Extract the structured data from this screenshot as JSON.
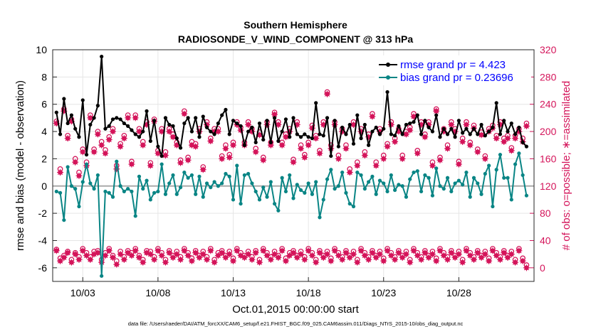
{
  "chart_data": {
    "type": "line",
    "title": "Southern Hemisphere",
    "subtitle": "RADIOSONDE_V_WIND_COMPONENT @ 313 hPa",
    "xlabel": "Oct.01,2015 00:00:00 start",
    "ylabel": "rmse and bias (model - observation)",
    "y2label": "# of obs: o=possible; ∗=assimilated",
    "xlim": [
      1,
      33
    ],
    "ylim": [
      -7,
      10
    ],
    "y2lim": [
      -20,
      320
    ],
    "x_ticks": [
      3,
      8,
      13,
      18,
      23,
      28
    ],
    "x_tick_labels": [
      "10/03",
      "10/08",
      "10/13",
      "10/18",
      "10/23",
      "10/28"
    ],
    "y_ticks": [
      "-6",
      "-4",
      "-2",
      "0",
      "2",
      "4",
      "6",
      "8",
      "10"
    ],
    "y2_ticks": [
      "0",
      "40",
      "80",
      "120",
      "160",
      "200",
      "240",
      "280",
      "320"
    ],
    "grid": true,
    "legend_position": "top-right",
    "zero_line": 0,
    "x": [
      1.25,
      1.5,
      1.75,
      2.0,
      2.25,
      2.5,
      2.75,
      3.0,
      3.25,
      3.5,
      3.75,
      4.0,
      4.25,
      4.5,
      4.75,
      5.0,
      5.25,
      5.5,
      5.75,
      6.0,
      6.25,
      6.5,
      6.75,
      7.0,
      7.25,
      7.5,
      7.75,
      8.0,
      8.25,
      8.5,
      8.75,
      9.0,
      9.25,
      9.5,
      9.75,
      10.0,
      10.25,
      10.5,
      10.75,
      11.0,
      11.25,
      11.5,
      11.75,
      12.0,
      12.25,
      12.5,
      12.75,
      13.0,
      13.25,
      13.5,
      13.75,
      14.0,
      14.25,
      14.5,
      14.75,
      15.0,
      15.25,
      15.5,
      15.75,
      16.0,
      16.25,
      16.5,
      16.75,
      17.0,
      17.25,
      17.5,
      17.75,
      18.0,
      18.25,
      18.5,
      18.75,
      19.0,
      19.25,
      19.5,
      19.75,
      20.0,
      20.25,
      20.5,
      20.75,
      21.0,
      21.25,
      21.5,
      21.75,
      22.0,
      22.25,
      22.5,
      22.75,
      23.0,
      23.25,
      23.5,
      23.75,
      24.0,
      24.25,
      24.5,
      24.75,
      25.0,
      25.25,
      25.5,
      25.75,
      26.0,
      26.25,
      26.5,
      26.75,
      27.0,
      27.25,
      27.5,
      27.75,
      28.0,
      28.25,
      28.5,
      28.75,
      29.0,
      29.25,
      29.5,
      29.75,
      30.0,
      30.25,
      30.5,
      30.75,
      31.0,
      31.25,
      31.5,
      31.75,
      32.0,
      32.25,
      32.5
    ],
    "series": [
      {
        "name": "rmse grand pr = 4.423",
        "color": "#000000",
        "values": [
          5.4,
          3.8,
          6.4,
          4.6,
          5.2,
          4.2,
          3.6,
          6.3,
          2.3,
          4.5,
          5.0,
          5.9,
          9.5,
          4.2,
          4.4,
          4.9,
          5.0,
          4.9,
          4.6,
          4.4,
          4.1,
          3.8,
          3.6,
          4.0,
          5.5,
          3.3,
          4.8,
          2.9,
          2.2,
          5.0,
          4.5,
          4.4,
          3.5,
          2.8,
          4.6,
          5.0,
          4.0,
          5.0,
          3.6,
          5.1,
          4.3,
          4.0,
          3.8,
          4.6,
          5.2,
          5.6,
          3.8,
          4.8,
          4.6,
          4.4,
          3.0,
          4.0,
          4.3,
          3.2,
          4.6,
          3.4,
          4.8,
          3.2,
          5.0,
          3.3,
          4.0,
          4.9,
          3.6,
          5.0,
          3.8,
          3.6,
          3.8,
          3.6,
          3.5,
          6.1,
          3.8,
          3.7,
          5.0,
          2.2,
          4.8,
          2.9,
          4.3,
          3.8,
          4.5,
          3.1,
          5.2,
          3.5,
          4.5,
          3.0,
          4.0,
          4.3,
          3.8,
          4.2,
          6.9,
          3.8,
          3.7,
          4.4,
          3.8,
          4.5,
          4.6,
          4.7,
          5.2,
          3.8,
          4.8,
          4.3,
          4.0,
          5.2,
          3.6,
          4.2,
          3.8,
          4.2,
          3.6,
          4.8,
          3.9,
          4.2,
          3.8,
          4.2,
          3.8,
          4.5,
          3.7,
          4.0,
          4.3,
          6.1,
          3.8,
          4.8,
          4.0,
          4.6,
          3.8,
          4.3,
          3.2,
          2.9
        ]
      },
      {
        "name": "bias grand pr = 0.23696",
        "color": "#098585",
        "values": [
          -0.4,
          -0.5,
          -2.5,
          1.4,
          0.0,
          -0.2,
          -1.5,
          0.3,
          1.6,
          0.2,
          -0.2,
          0.8,
          -6.6,
          -0.4,
          -0.5,
          -0.8,
          1.8,
          0.0,
          -0.4,
          -0.2,
          -0.4,
          -2.2,
          0.7,
          -0.2,
          0.4,
          -1.0,
          -0.5,
          -0.4,
          1.6,
          -0.6,
          0.2,
          0.8,
          -0.6,
          -0.1,
          1.0,
          0.6,
          0.8,
          -0.6,
          0.7,
          -0.8,
          0.2,
          -0.1,
          0.3,
          0.0,
          0.2,
          0.9,
          0.7,
          -1.0,
          1.5,
          -1.3,
          0.8,
          0.9,
          0.2,
          -0.4,
          -1.0,
          -0.1,
          -0.8,
          0.3,
          -1.3,
          -1.8,
          0.6,
          -0.4,
          0.8,
          -0.9,
          0.1,
          -0.3,
          -0.5,
          0.2,
          -0.6,
          0.3,
          -2.3,
          -1.0,
          0.5,
          1.2,
          -0.2,
          0.0,
          1.0,
          -0.5,
          -1.3,
          -1.5,
          1.0,
          0.8,
          -0.2,
          0.3,
          0.7,
          -0.6,
          0.4,
          0.2,
          -0.4,
          0.8,
          -0.3,
          0.1,
          0.0,
          -0.8,
          0.5,
          1.0,
          1.1,
          -0.4,
          0.8,
          0.6,
          -0.7,
          1.3,
          0.0,
          -0.2,
          0.6,
          -0.4,
          0.2,
          0.4,
          0.1,
          1.0,
          -0.8,
          0.6,
          0.2,
          -0.6,
          0.9,
          1.5,
          -1.5,
          1.2,
          2.3,
          0.6,
          0.6,
          -1.0,
          1.6,
          2.4,
          0.8,
          -0.7
        ]
      }
    ],
    "obs_assimilated": {
      "name": "assimilated",
      "color": "#d4145a",
      "values": [
        25,
        10,
        15,
        22,
        8,
        20,
        12,
        25,
        18,
        12,
        20,
        22,
        8,
        18,
        25,
        15,
        5,
        20,
        12,
        22,
        18,
        25,
        15,
        8,
        22,
        20,
        12,
        25,
        18,
        8,
        22,
        15,
        20,
        12,
        25,
        18,
        10,
        22,
        15,
        20,
        12,
        25,
        8,
        18,
        22,
        15,
        20,
        10,
        25,
        18,
        15,
        20,
        12,
        22,
        8,
        25,
        18,
        12,
        20,
        15,
        25,
        10,
        18,
        22,
        15,
        20,
        12,
        25,
        18,
        8,
        22,
        15,
        20,
        10,
        25,
        18,
        12,
        22,
        15,
        20,
        8,
        25,
        18,
        12,
        22,
        15,
        20,
        10,
        25,
        18,
        12,
        22,
        15,
        20,
        8,
        25,
        18,
        12,
        22,
        15,
        20,
        10,
        25,
        18,
        12,
        22,
        15,
        20,
        8,
        25,
        18,
        12,
        22,
        15,
        20,
        10,
        25,
        18,
        12,
        22,
        15,
        20,
        8,
        25,
        10,
        0
      ],
      "values_high": [
        212,
        140,
        230,
        190,
        215,
        155,
        135,
        170,
        150,
        220,
        170,
        196,
        180,
        168,
        188,
        200,
        145,
        178,
        190,
        220,
        152,
        220,
        200,
        180,
        210,
        150,
        215,
        168,
        200,
        165,
        200,
        192,
        180,
        154,
        226,
        158,
        180,
        178,
        200,
        144,
        210,
        186,
        200,
        200,
        160,
        175,
        162,
        180,
        210,
        202,
        180,
        210,
        200,
        170,
        195,
        158,
        210,
        180,
        225,
        210,
        180,
        192,
        200,
        155,
        210,
        175,
        162,
        180,
        205,
        190,
        168,
        210,
        255,
        175,
        210,
        160,
        200,
        175,
        140,
        210,
        150,
        200,
        165,
        192,
        222,
        150,
        200,
        160,
        178,
        210,
        185,
        200,
        160,
        196,
        202,
        222,
        168,
        210,
        192,
        210,
        150,
        230,
        158,
        200,
        175,
        210,
        200,
        152,
        185,
        210,
        180,
        205,
        170,
        195,
        160,
        200,
        205,
        190,
        210,
        185,
        190,
        172,
        190,
        200,
        185,
        208
      ]
    },
    "obs_possible": {
      "name": "possible",
      "color": "#d4145a",
      "values": [
        27,
        14,
        18,
        24,
        12,
        22,
        16,
        28,
        22,
        16,
        24,
        25,
        12,
        22,
        28,
        18,
        10,
        24,
        16,
        25,
        22,
        28,
        18,
        12,
        25,
        24,
        16,
        28,
        22,
        12,
        25,
        18,
        24,
        16,
        28,
        22,
        14,
        25,
        18,
        24,
        16,
        28,
        12,
        22,
        25,
        18,
        24,
        14,
        28,
        22,
        18,
        24,
        16,
        25,
        12,
        28,
        22,
        16,
        24,
        18,
        28,
        14,
        22,
        25,
        18,
        24,
        16,
        28,
        22,
        12,
        25,
        18,
        24,
        14,
        28,
        22,
        16,
        25,
        18,
        24,
        12,
        28,
        22,
        16,
        25,
        18,
        24,
        14,
        28,
        22,
        16,
        25,
        18,
        24,
        12,
        28,
        22,
        16,
        25,
        18,
        24,
        14,
        28,
        22,
        16,
        25,
        18,
        24,
        12,
        28,
        22,
        16,
        25,
        18,
        24,
        14,
        28,
        22,
        16,
        25,
        18,
        24,
        12,
        28,
        14,
        4
      ],
      "values_high": [
        215,
        145,
        233,
        194,
        218,
        160,
        140,
        174,
        155,
        224,
        174,
        200,
        185,
        173,
        192,
        204,
        150,
        182,
        194,
        224,
        156,
        224,
        204,
        185,
        214,
        154,
        218,
        172,
        204,
        170,
        204,
        196,
        184,
        158,
        230,
        162,
        185,
        182,
        204,
        148,
        214,
        190,
        204,
        204,
        164,
        180,
        166,
        184,
        214,
        206,
        184,
        214,
        204,
        175,
        199,
        162,
        214,
        184,
        228,
        214,
        184,
        196,
        204,
        159,
        214,
        180,
        166,
        184,
        209,
        194,
        172,
        214,
        258,
        180,
        214,
        165,
        204,
        180,
        145,
        214,
        155,
        204,
        170,
        196,
        226,
        155,
        204,
        165,
        182,
        214,
        190,
        204,
        165,
        200,
        206,
        226,
        172,
        214,
        196,
        214,
        155,
        233,
        162,
        204,
        180,
        214,
        204,
        156,
        190,
        214,
        184,
        209,
        174,
        199,
        164,
        204,
        209,
        194,
        214,
        190,
        194,
        176,
        194,
        204,
        190,
        212
      ]
    },
    "footnote": "data file: /Users/raeder/DAI/ATM_forcXX/CAM6_setup/f.e21.FHIST_BGC.f09_025.CAM6assim.011/Diags_NTrS_2015-10/obs_diag_output.nc"
  }
}
